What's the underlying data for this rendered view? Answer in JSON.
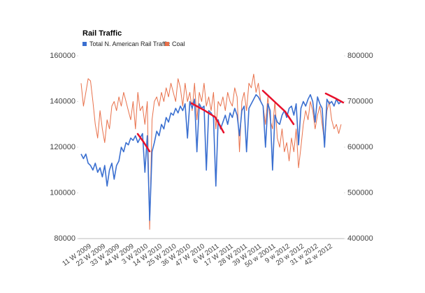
{
  "chart_data": {
    "type": "line",
    "title": "Rail Traffic",
    "categories": [
      null,
      null,
      null,
      null,
      "11 W 2009",
      null,
      null,
      null,
      null,
      null,
      "22 W 2009",
      null,
      null,
      null,
      null,
      null,
      "33 W 2009",
      null,
      null,
      null,
      null,
      null,
      "44 W 2009",
      null,
      null,
      null,
      null,
      null,
      "3 W 2010",
      null,
      null,
      null,
      null,
      null,
      "14 W 2010",
      null,
      null,
      null,
      null,
      null,
      "25 W 2010",
      null,
      null,
      null,
      null,
      null,
      "36 W 2010",
      null,
      null,
      null,
      null,
      null,
      "47 W 2010",
      null,
      null,
      null,
      null,
      null,
      "6 W 2011",
      null,
      null,
      null,
      null,
      null,
      "17 W 2011",
      null,
      null,
      null,
      null,
      null,
      "28 W 2011",
      null,
      null,
      null,
      null,
      null,
      "39 W 2011",
      null,
      null,
      null,
      null,
      null,
      "50 w 20011",
      null,
      null,
      null,
      null,
      null,
      "9 w 2012",
      null,
      null,
      null,
      null,
      null,
      "20 w 2012",
      null,
      null,
      null,
      null,
      null,
      "31 w 2012",
      null,
      null,
      null,
      null,
      null,
      "42 w 2012",
      null,
      null,
      null,
      null
    ],
    "series": [
      {
        "name": "Total N. American Rail Traffic",
        "color": "#3a6fd0",
        "values": [
          117000,
          115000,
          117000,
          113000,
          112000,
          110000,
          113000,
          109000,
          111000,
          107000,
          112000,
          103000,
          110000,
          113000,
          106000,
          112000,
          114000,
          120000,
          118000,
          122000,
          121000,
          124000,
          123000,
          125000,
          122000,
          124000,
          126000,
          109000,
          125000,
          88000,
          118000,
          122000,
          127000,
          125000,
          130000,
          128000,
          133000,
          131000,
          135000,
          134000,
          137000,
          135000,
          138000,
          136000,
          139000,
          124000,
          140000,
          137000,
          141000,
          118000,
          139000,
          137000,
          138000,
          110000,
          136000,
          135000,
          133000,
          103000,
          132000,
          128000,
          131000,
          134000,
          130000,
          135000,
          133000,
          137000,
          134000,
          125000,
          136000,
          138000,
          118000,
          137000,
          139000,
          141000,
          143000,
          142000,
          140000,
          138000,
          120000,
          139000,
          136000,
          110000,
          134000,
          131000,
          130000,
          134000,
          136000,
          133000,
          137000,
          138000,
          134000,
          139000,
          121000,
          137000,
          140000,
          138000,
          141000,
          143000,
          140000,
          131000,
          142000,
          139000,
          137000,
          120000,
          141000,
          139000,
          140000,
          138000,
          141000,
          139000,
          140000
        ]
      },
      {
        "name": "Coal",
        "color": "#e8704a",
        "axis": "y2",
        "values": [
          740000,
          690000,
          720000,
          750000,
          745000,
          700000,
          650000,
          620000,
          680000,
          640000,
          610000,
          660000,
          640000,
          690000,
          700000,
          680000,
          710000,
          690000,
          720000,
          700000,
          680000,
          660000,
          700000,
          640000,
          720000,
          680000,
          690000,
          650000,
          700000,
          420000,
          660000,
          700000,
          710000,
          690000,
          720000,
          700000,
          730000,
          710000,
          740000,
          720000,
          700000,
          750000,
          730000,
          690000,
          740000,
          700000,
          720000,
          680000,
          740000,
          660000,
          720000,
          700000,
          740000,
          690000,
          710000,
          680000,
          720000,
          640000,
          700000,
          690000,
          710000,
          680000,
          720000,
          700000,
          690000,
          730000,
          710000,
          590000,
          700000,
          720000,
          680000,
          740000,
          730000,
          760000,
          720000,
          740000,
          700000,
          690000,
          650000,
          710000,
          660000,
          640000,
          700000,
          620000,
          600000,
          640000,
          590000,
          610000,
          570000,
          620000,
          590000,
          640000,
          555000,
          600000,
          650000,
          680000,
          660000,
          700000,
          680000,
          640000,
          670000,
          690000,
          650000,
          610000,
          680000,
          700000,
          660000,
          640000,
          650000,
          630000,
          650000
        ]
      }
    ],
    "ylim": [
      80000,
      160000
    ],
    "yticks": [
      80000,
      100000,
      120000,
      140000,
      160000
    ],
    "y2lim": [
      400000,
      800000
    ],
    "y2ticks": [
      400000,
      500000,
      600000,
      700000,
      800000
    ],
    "grid": false
  }
}
